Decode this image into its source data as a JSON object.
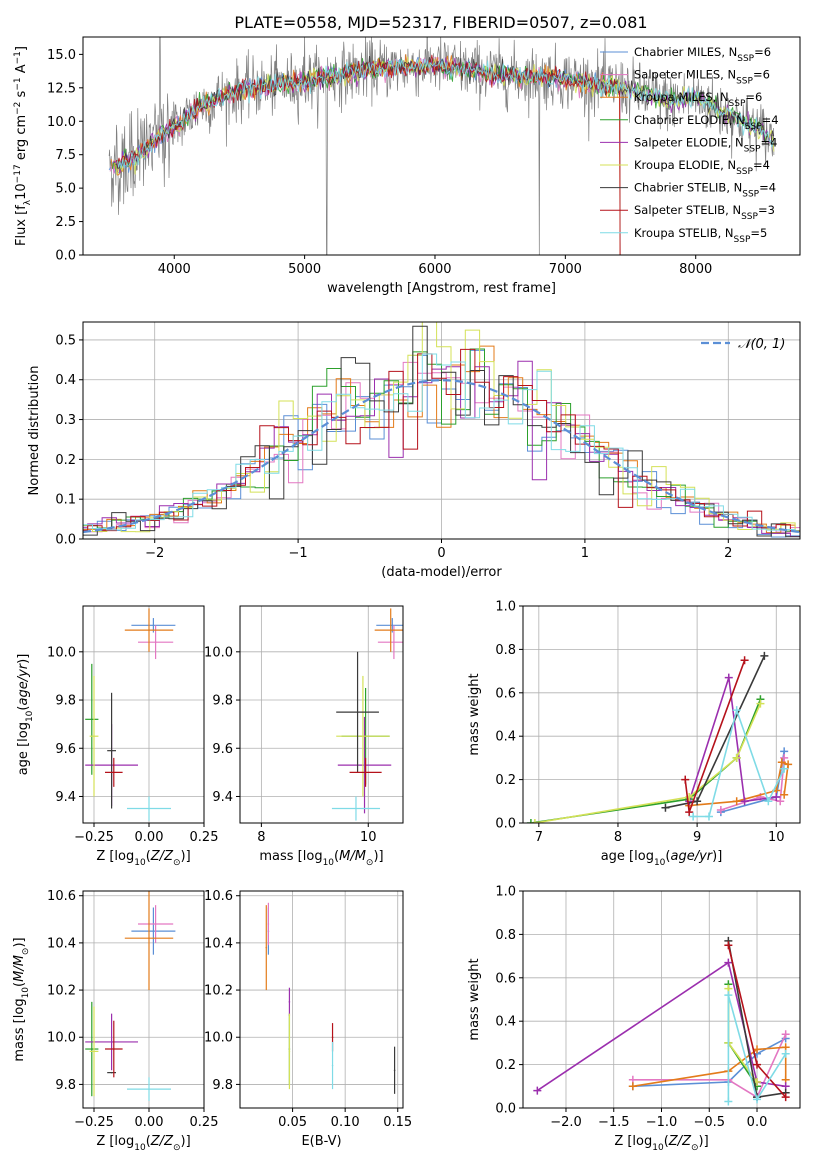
{
  "figure": {
    "title": "PLATE=0558, MJD=52317, FIBERID=0507, z=0.081"
  },
  "colors": {
    "Chabrier MILES": "#5b8fd6",
    "Salpeter MILES": "#e377c2",
    "Kroupa MILES": "#e37b1a",
    "Chabrier ELODIE": "#2ca02c",
    "Salpeter ELODIE": "#9b2fae",
    "Kroupa ELODIE": "#d4e157",
    "Chabrier STELIB": "#3a3a3a",
    "Salpeter STELIB": "#b5121b",
    "Kroupa STELIB": "#7fdbe6",
    "gaussian": "#5b8fd6",
    "data": "#808080"
  },
  "chart_data": [
    {
      "id": "spectrum",
      "type": "line",
      "xlabel": "wavelength [Angstrom, rest frame]",
      "ylabel": "Flux [f_λ 10^-17 erg cm^-2 s^-1 A^-1]",
      "xlim": [
        3300,
        8800
      ],
      "ylim": [
        0,
        16.3
      ],
      "xticks": [
        "4000",
        "5000",
        "6000",
        "7000",
        "8000"
      ],
      "yticks": [
        "0.0",
        "2.5",
        "5.0",
        "7.5",
        "10.0",
        "12.5",
        "15.0"
      ],
      "legend_position": "right",
      "legend": [
        {
          "label": "Chabrier MILES",
          "nssp": "6"
        },
        {
          "label": "Salpeter MILES",
          "nssp": "6"
        },
        {
          "label": "Kroupa MILES",
          "nssp": "6"
        },
        {
          "label": "Chabrier ELODIE",
          "nssp": "4"
        },
        {
          "label": "Salpeter ELODIE",
          "nssp": "4"
        },
        {
          "label": "Kroupa ELODIE",
          "nssp": "4"
        },
        {
          "label": "Chabrier STELIB",
          "nssp": "4"
        },
        {
          "label": "Salpeter STELIB",
          "nssp": "3"
        },
        {
          "label": "Kroupa STELIB",
          "nssp": "5"
        }
      ],
      "continuum": [
        [
          3500,
          6.5
        ],
        [
          3700,
          7.2
        ],
        [
          3900,
          9.0
        ],
        [
          4000,
          9.5
        ],
        [
          4200,
          11.2
        ],
        [
          4500,
          12.3
        ],
        [
          5000,
          13.0
        ],
        [
          5500,
          13.9
        ],
        [
          6000,
          14.2
        ],
        [
          6500,
          13.5
        ],
        [
          7000,
          13.2
        ],
        [
          7400,
          12.6
        ],
        [
          7800,
          11.5
        ],
        [
          8000,
          11.8
        ],
        [
          8200,
          10.7
        ],
        [
          8500,
          9.3
        ],
        [
          8600,
          8.6
        ]
      ]
    },
    {
      "id": "residuals",
      "type": "line",
      "xlabel": "(data-model)/error",
      "ylabel": "Normed distribution",
      "xlim": [
        -2.5,
        2.5
      ],
      "ylim": [
        0,
        0.545
      ],
      "xticks": [
        "−2",
        "−1",
        "0",
        "1",
        "2"
      ],
      "yticks": [
        "0.0",
        "0.1",
        "0.2",
        "0.3",
        "0.4",
        "0.5"
      ],
      "legend": "𝒩(0, 1)",
      "legend_position": "top-right",
      "gaussian": {
        "mean": 0,
        "sigma": 1
      }
    },
    {
      "id": "age-vs-Z",
      "type": "scatter",
      "xlabel": "Z [log10(Z/Z⊙)]",
      "ylabel": "age [log10(age/yr)]",
      "xlim": [
        -0.3,
        0.25
      ],
      "ylim": [
        9.29,
        10.19
      ],
      "xticks": [
        "−0.25",
        "0.00",
        "0.25"
      ],
      "yticks": [
        "9.4",
        "9.6",
        "9.8",
        "10.0"
      ],
      "points": [
        {
          "model": "Chabrier MILES",
          "x": 0.02,
          "xerr": 0.1,
          "y": 10.11,
          "yerr": 0.03
        },
        {
          "model": "Salpeter MILES",
          "x": 0.03,
          "xerr": 0.08,
          "y": 10.04,
          "yerr": 0.07
        },
        {
          "model": "Kroupa MILES",
          "x": 0.0,
          "xerr": 0.11,
          "y": 10.09,
          "yerr": 0.09
        },
        {
          "model": "Chabrier ELODIE",
          "x": -0.26,
          "xerr": 0.03,
          "y": 9.72,
          "yerr": 0.23
        },
        {
          "model": "Salpeter ELODIE",
          "x": -0.17,
          "xerr": 0.12,
          "y": 9.53,
          "yerr": 0.17
        },
        {
          "model": "Kroupa ELODIE",
          "x": -0.25,
          "xerr": 0.02,
          "y": 9.65,
          "yerr": 0.25
        },
        {
          "model": "Chabrier STELIB",
          "x": -0.17,
          "xerr": 0.02,
          "y": 9.59,
          "yerr": 0.24
        },
        {
          "model": "Salpeter STELIB",
          "x": -0.16,
          "xerr": 0.04,
          "y": 9.5,
          "yerr": 0.06
        },
        {
          "model": "Kroupa STELIB",
          "x": 0.0,
          "xerr": 0.1,
          "y": 9.35,
          "yerr": 0.05
        }
      ]
    },
    {
      "id": "age-vs-mass",
      "type": "scatter",
      "xlabel": "mass [log10(M/M⊙)]",
      "ylabel": "",
      "xlim": [
        7.6,
        10.65
      ],
      "ylim": [
        9.29,
        10.19
      ],
      "xticks": [
        "8",
        "10"
      ],
      "yticks": [
        "9.4",
        "9.6",
        "9.8",
        "10.0"
      ],
      "points": [
        {
          "model": "Chabrier MILES",
          "x": 10.45,
          "xerr": 0.3,
          "y": 10.11,
          "yerr": 0.03
        },
        {
          "model": "Salpeter MILES",
          "x": 10.48,
          "xerr": 0.3,
          "y": 10.04,
          "yerr": 0.07
        },
        {
          "model": "Kroupa MILES",
          "x": 10.42,
          "xerr": 0.3,
          "y": 10.09,
          "yerr": 0.09
        },
        {
          "model": "Chabrier ELODIE",
          "x": 9.95,
          "xerr": 0.45,
          "y": 9.65,
          "yerr": 0.2
        },
        {
          "model": "Salpeter ELODIE",
          "x": 9.93,
          "xerr": 0.5,
          "y": 9.53,
          "yerr": 0.2
        },
        {
          "model": "Kroupa ELODIE",
          "x": 9.9,
          "xerr": 0.5,
          "y": 9.65,
          "yerr": 0.25
        },
        {
          "model": "Chabrier STELIB",
          "x": 9.8,
          "xerr": 0.4,
          "y": 9.75,
          "yerr": 0.25
        },
        {
          "model": "Salpeter STELIB",
          "x": 9.95,
          "xerr": 0.3,
          "y": 9.5,
          "yerr": 0.06
        },
        {
          "model": "Kroupa STELIB",
          "x": 9.77,
          "xerr": 0.45,
          "y": 9.35,
          "yerr": 0.05
        }
      ]
    },
    {
      "id": "weight-vs-age",
      "type": "line",
      "xlabel": "age [log10(age/yr)]",
      "ylabel": "mass weight",
      "xlim": [
        6.8,
        10.3
      ],
      "ylim": [
        0,
        1.0
      ],
      "xticks": [
        "7",
        "8",
        "9",
        "10"
      ],
      "yticks": [
        "0.0",
        "0.2",
        "0.4",
        "0.6",
        "0.8",
        "1.0"
      ],
      "series": [
        {
          "model": "Chabrier MILES",
          "points": [
            [
              9.3,
              0.05
            ],
            [
              10.0,
              0.12
            ],
            [
              10.1,
              0.33
            ]
          ]
        },
        {
          "model": "Salpeter MILES",
          "points": [
            [
              9.3,
              0.06
            ],
            [
              9.8,
              0.12
            ],
            [
              10.05,
              0.1
            ],
            [
              10.1,
              0.3
            ]
          ]
        },
        {
          "model": "Kroupa MILES",
          "points": [
            [
              8.9,
              0.08
            ],
            [
              9.5,
              0.1
            ],
            [
              10.0,
              0.15
            ],
            [
              10.07,
              0.28
            ],
            [
              10.15,
              0.27
            ],
            [
              10.1,
              0.13
            ]
          ]
        },
        {
          "model": "Chabrier ELODIE",
          "points": [
            [
              6.9,
              0.0
            ],
            [
              8.9,
              0.11
            ],
            [
              9.5,
              0.3
            ],
            [
              9.8,
              0.57
            ]
          ]
        },
        {
          "model": "Salpeter ELODIE",
          "points": [
            [
              8.9,
              0.1
            ],
            [
              9.4,
              0.67
            ],
            [
              9.6,
              0.1
            ],
            [
              10.0,
              0.12
            ]
          ]
        },
        {
          "model": "Kroupa ELODIE",
          "points": [
            [
              6.95,
              0.0
            ],
            [
              8.9,
              0.12
            ],
            [
              9.5,
              0.3
            ],
            [
              9.8,
              0.55
            ]
          ]
        },
        {
          "model": "Chabrier STELIB",
          "points": [
            [
              8.6,
              0.07
            ],
            [
              9.0,
              0.1
            ],
            [
              9.85,
              0.77
            ]
          ]
        },
        {
          "model": "Salpeter STELIB",
          "points": [
            [
              8.85,
              0.2
            ],
            [
              8.9,
              0.05
            ],
            [
              9.6,
              0.75
            ]
          ]
        },
        {
          "model": "Kroupa STELIB",
          "points": [
            [
              8.95,
              0.03
            ],
            [
              9.15,
              0.03
            ],
            [
              9.5,
              0.52
            ],
            [
              9.9,
              0.1
            ],
            [
              10.1,
              0.25
            ]
          ]
        }
      ]
    },
    {
      "id": "mass-vs-Z",
      "type": "scatter",
      "xlabel": "Z [log10(Z/Z⊙)]",
      "ylabel": "mass [log10(M/M⊙)]",
      "xlim": [
        -0.3,
        0.25
      ],
      "ylim": [
        9.7,
        10.62
      ],
      "xticks": [
        "−0.25",
        "0.00",
        "0.25"
      ],
      "yticks": [
        "9.8",
        "10.0",
        "10.2",
        "10.4",
        "10.6"
      ],
      "points": [
        {
          "model": "Chabrier MILES",
          "x": 0.02,
          "xerr": 0.1,
          "y": 10.45,
          "yerr": 0.1
        },
        {
          "model": "Salpeter MILES",
          "x": 0.03,
          "xerr": 0.08,
          "y": 10.48,
          "yerr": 0.08
        },
        {
          "model": "Kroupa MILES",
          "x": 0.0,
          "xerr": 0.11,
          "y": 10.42,
          "yerr": 0.22
        },
        {
          "model": "Chabrier ELODIE",
          "x": -0.26,
          "xerr": 0.03,
          "y": 9.95,
          "yerr": 0.2
        },
        {
          "model": "Salpeter ELODIE",
          "x": -0.17,
          "xerr": 0.12,
          "y": 9.98,
          "yerr": 0.12
        },
        {
          "model": "Kroupa ELODIE",
          "x": -0.25,
          "xerr": 0.02,
          "y": 9.94,
          "yerr": 0.19
        },
        {
          "model": "Chabrier STELIB",
          "x": -0.17,
          "xerr": 0.02,
          "y": 9.85,
          "yerr": 0.0
        },
        {
          "model": "Salpeter STELIB",
          "x": -0.16,
          "xerr": 0.04,
          "y": 9.95,
          "yerr": 0.12
        },
        {
          "model": "Kroupa STELIB",
          "x": 0.0,
          "xerr": 0.1,
          "y": 9.78,
          "yerr": 0.05
        }
      ]
    },
    {
      "id": "mass-vs-ebv",
      "type": "scatter",
      "xlabel": "E(B-V)",
      "ylabel": "",
      "xlim": [
        0.0,
        0.155
      ],
      "ylim": [
        9.7,
        10.62
      ],
      "xticks": [
        "0.05",
        "0.10",
        "0.15"
      ],
      "yticks": [
        "9.8",
        "10.0",
        "10.2",
        "10.4",
        "10.6"
      ],
      "points": [
        {
          "model": "Chabrier MILES",
          "x": 0.027,
          "y": 10.45,
          "yerr": 0.1
        },
        {
          "model": "Salpeter MILES",
          "x": 0.027,
          "y": 10.48,
          "yerr": 0.09
        },
        {
          "model": "Kroupa MILES",
          "x": 0.025,
          "y": 10.38,
          "yerr": 0.18
        },
        {
          "model": "Chabrier ELODIE",
          "x": 0.047,
          "y": 9.95,
          "yerr": 0.15
        },
        {
          "model": "Salpeter ELODIE",
          "x": 0.047,
          "y": 10.15,
          "yerr": 0.06
        },
        {
          "model": "Kroupa ELODIE",
          "x": 0.047,
          "y": 9.94,
          "yerr": 0.16
        },
        {
          "model": "Chabrier STELIB",
          "x": 0.147,
          "y": 9.86,
          "yerr": 0.1
        },
        {
          "model": "Salpeter STELIB",
          "x": 0.088,
          "y": 10.0,
          "yerr": 0.06
        },
        {
          "model": "Kroupa STELIB",
          "x": 0.088,
          "y": 9.88,
          "yerr": 0.1
        }
      ]
    },
    {
      "id": "weight-vs-Z",
      "type": "line",
      "xlabel": "Z [log10(Z/Z⊙)]",
      "ylabel": "mass weight",
      "xlim": [
        -2.45,
        0.45
      ],
      "ylim": [
        0,
        1.0
      ],
      "xticks": [
        "−2.0",
        "−1.5",
        "−1.0",
        "−0.5",
        "0.0"
      ],
      "yticks": [
        "0.0",
        "0.2",
        "0.4",
        "0.6",
        "0.8",
        "1.0"
      ],
      "series": [
        {
          "model": "Chabrier MILES",
          "points": [
            [
              -1.3,
              0.1
            ],
            [
              -0.3,
              0.12
            ],
            [
              0.0,
              0.25
            ],
            [
              0.3,
              0.32
            ]
          ]
        },
        {
          "model": "Salpeter MILES",
          "points": [
            [
              -1.3,
              0.13
            ],
            [
              -0.3,
              0.13
            ],
            [
              0.0,
              0.05
            ],
            [
              0.3,
              0.34
            ]
          ]
        },
        {
          "model": "Kroupa MILES",
          "points": [
            [
              -1.3,
              0.1
            ],
            [
              -0.3,
              0.17
            ],
            [
              0.0,
              0.27
            ],
            [
              0.3,
              0.28
            ],
            [
              0.3,
              0.13
            ]
          ]
        },
        {
          "model": "Chabrier ELODIE",
          "points": [
            [
              -0.3,
              0.57
            ],
            [
              -0.3,
              0.3
            ],
            [
              0.0,
              0.1
            ]
          ]
        },
        {
          "model": "Salpeter ELODIE",
          "points": [
            [
              -2.3,
              0.08
            ],
            [
              -0.3,
              0.67
            ],
            [
              0.0,
              0.12
            ],
            [
              0.3,
              0.1
            ]
          ]
        },
        {
          "model": "Kroupa ELODIE",
          "points": [
            [
              -0.3,
              0.55
            ],
            [
              -0.3,
              0.3
            ],
            [
              0.0,
              0.12
            ]
          ]
        },
        {
          "model": "Chabrier STELIB",
          "points": [
            [
              -0.3,
              0.77
            ],
            [
              0.0,
              0.05
            ],
            [
              0.3,
              0.07
            ]
          ]
        },
        {
          "model": "Salpeter STELIB",
          "points": [
            [
              -0.3,
              0.75
            ],
            [
              0.0,
              0.2
            ],
            [
              0.3,
              0.05
            ]
          ]
        },
        {
          "model": "Kroupa STELIB",
          "points": [
            [
              -0.3,
              0.03
            ],
            [
              -0.3,
              0.52
            ],
            [
              0.0,
              0.04
            ],
            [
              0.3,
              0.25
            ]
          ]
        }
      ]
    }
  ]
}
